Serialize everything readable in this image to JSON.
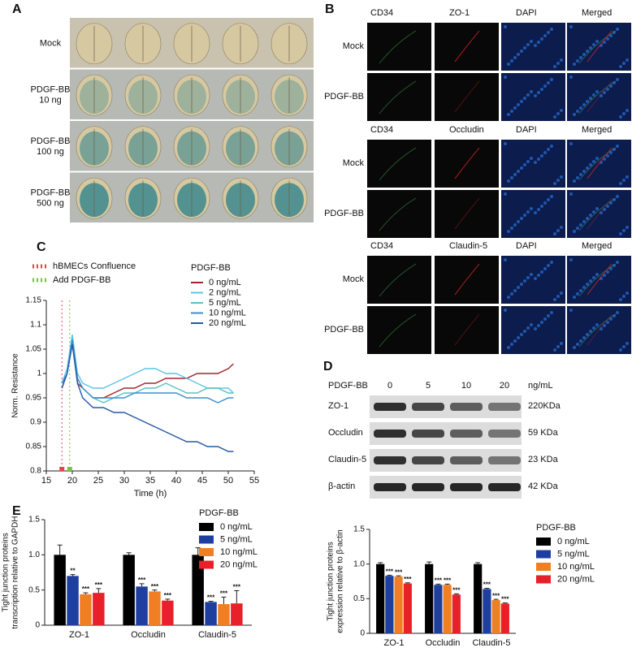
{
  "panel_a": {
    "label": "A",
    "rows": [
      [
        "Mock"
      ],
      [
        "PDGF-BB",
        "10 ng"
      ],
      [
        "PDGF-BB",
        "100 ng"
      ],
      [
        "PDGF-BB",
        "500 ng"
      ]
    ]
  },
  "panel_b": {
    "label": "B",
    "groups": [
      {
        "columns": [
          "CD34",
          "ZO-1",
          "DAPI",
          "Merged"
        ],
        "rows": [
          "Mock",
          "PDGF-BB"
        ]
      },
      {
        "columns": [
          "CD34",
          "Occludin",
          "DAPI",
          "Merged"
        ],
        "rows": [
          "Mock",
          "PDGF-BB"
        ]
      },
      {
        "columns": [
          "CD34",
          "Claudin-5",
          "DAPI",
          "Merged"
        ],
        "rows": [
          "Mock",
          "PDGF-BB"
        ]
      }
    ]
  },
  "panel_d_blot": {
    "label": "D",
    "treatment": "PDGF-BB",
    "lanes": [
      "0",
      "5",
      "10",
      "20"
    ],
    "unit": "ng/mL",
    "proteins": [
      {
        "name": "ZO-1",
        "size": "220KDa"
      },
      {
        "name": "Occludin",
        "size": "59  KDa"
      },
      {
        "name": "Claudin-5",
        "size": "23  KDa"
      },
      {
        "name": "β-actin",
        "size": "42  KDa"
      }
    ]
  },
  "chart_data": [
    {
      "type": "line",
      "panel": "C",
      "xlabel": "Time (h)",
      "ylabel": [
        "Norm. Resistance"
      ],
      "x": [
        18,
        19,
        20,
        21,
        22,
        24,
        26,
        28,
        30,
        32,
        34,
        36,
        38,
        40,
        42,
        44,
        46,
        48,
        50,
        51
      ],
      "xlim": [
        15,
        55
      ],
      "xticks": [
        15,
        20,
        25,
        30,
        35,
        40,
        45,
        50,
        55
      ],
      "ylim": [
        0.8,
        1.15
      ],
      "yticks": [
        0.8,
        0.85,
        0.9,
        0.95,
        1,
        1.05,
        1.1,
        1.15
      ],
      "markers": [
        {
          "name": "hBMECs Confluence",
          "x": 18,
          "color": "#e8414a"
        },
        {
          "name": "Add PDGF-BB",
          "x": 19.5,
          "color": "#7cc142"
        }
      ],
      "legend_title": "PDGF-BB",
      "series": [
        {
          "name": "0 ng/mL",
          "color": "#a0262e",
          "values": [
            0.97,
            1.0,
            1.07,
            0.98,
            0.97,
            0.95,
            0.95,
            0.96,
            0.97,
            0.97,
            0.98,
            0.98,
            0.99,
            0.99,
            0.99,
            1.0,
            1.0,
            1.0,
            1.01,
            1.02
          ]
        },
        {
          "name": "2 ng/mL",
          "color": "#5ec4e8",
          "values": [
            0.98,
            1.01,
            1.08,
            1.0,
            0.98,
            0.97,
            0.97,
            0.98,
            0.99,
            1.0,
            1.01,
            1.01,
            1.0,
            1.0,
            0.99,
            0.98,
            0.97,
            0.97,
            0.97,
            0.96
          ]
        },
        {
          "name": "5 ng/mL",
          "color": "#57c2c0",
          "values": [
            0.97,
            1.0,
            1.06,
            0.99,
            0.97,
            0.95,
            0.94,
            0.95,
            0.96,
            0.96,
            0.97,
            0.97,
            0.98,
            0.97,
            0.96,
            0.96,
            0.97,
            0.97,
            0.96,
            0.96
          ]
        },
        {
          "name": "10 ng/mL",
          "color": "#3a8fd0",
          "values": [
            0.98,
            1.0,
            1.07,
            0.99,
            0.97,
            0.95,
            0.95,
            0.95,
            0.95,
            0.96,
            0.96,
            0.96,
            0.96,
            0.96,
            0.95,
            0.95,
            0.95,
            0.94,
            0.95,
            0.95
          ]
        },
        {
          "name": "20 ng/mL",
          "color": "#2358a6",
          "values": [
            0.97,
            1.0,
            1.06,
            0.98,
            0.95,
            0.93,
            0.93,
            0.92,
            0.92,
            0.91,
            0.9,
            0.89,
            0.88,
            0.87,
            0.86,
            0.86,
            0.85,
            0.85,
            0.84,
            0.84
          ]
        }
      ]
    },
    {
      "type": "bar",
      "ylabel": [
        "Tight junction proteins",
        "expression relative to β-actin"
      ],
      "categories": [
        "ZO-1",
        "Occludin",
        "Claudin-5"
      ],
      "ylim": [
        0,
        1.5
      ],
      "yticks": [
        0,
        0.5,
        {
          "value": 1,
          "label": "1.0"
        },
        1.5
      ],
      "legend_title": "PDGF-BB",
      "series": [
        {
          "name": "0 ng/mL",
          "color": "#000000",
          "values": [
            1.0,
            1.0,
            1.0
          ],
          "errors": [
            0.02,
            0.03,
            0.02
          ]
        },
        {
          "name": "5 ng/mL",
          "color": "#1f3fa0",
          "values": [
            0.83,
            0.7,
            0.64
          ],
          "errors": [
            0.01,
            0.01,
            0.01
          ],
          "significance": [
            "***",
            "***",
            "***"
          ]
        },
        {
          "name": "10 ng/mL",
          "color": "#f07f24",
          "values": [
            0.82,
            0.7,
            0.48
          ],
          "errors": [
            0.01,
            0.01,
            0.01
          ],
          "significance": [
            "***",
            "***",
            "***"
          ]
        },
        {
          "name": "20 ng/mL",
          "color": "#e8202a",
          "values": [
            0.72,
            0.56,
            0.43
          ],
          "errors": [
            0.01,
            0.01,
            0.01
          ],
          "significance": [
            "***",
            "***",
            "***"
          ]
        }
      ]
    },
    {
      "type": "bar",
      "panel": "E",
      "ylabel": [
        "Tight junction proteins",
        "transcription relative to GAPDH"
      ],
      "categories": [
        "ZO-1",
        "Occludin",
        "Claudin-5"
      ],
      "ylim": [
        0,
        1.5
      ],
      "yticks": [
        0,
        0.5,
        {
          "value": 1,
          "label": "1.0"
        },
        1.5
      ],
      "legend_title": "PDGF-BB",
      "series": [
        {
          "name": "0 ng/mL",
          "color": "#000000",
          "values": [
            1.0,
            1.0,
            1.0
          ],
          "errors": [
            0.14,
            0.03,
            0.1
          ]
        },
        {
          "name": "5 ng/mL",
          "color": "#1f3fa0",
          "values": [
            0.7,
            0.55,
            0.33
          ],
          "errors": [
            0.02,
            0.04,
            0.01
          ],
          "significance": [
            "**",
            "***",
            "***"
          ]
        },
        {
          "name": "10 ng/mL",
          "color": "#f07f24",
          "values": [
            0.44,
            0.48,
            0.3
          ],
          "errors": [
            0.02,
            0.02,
            0.1
          ],
          "significance": [
            "***",
            "***",
            "***"
          ]
        },
        {
          "name": "20 ng/mL",
          "color": "#e8202a",
          "values": [
            0.46,
            0.35,
            0.31
          ],
          "errors": [
            0.06,
            0.02,
            0.18
          ],
          "significance": [
            "***",
            "***",
            "***"
          ]
        }
      ]
    }
  ]
}
